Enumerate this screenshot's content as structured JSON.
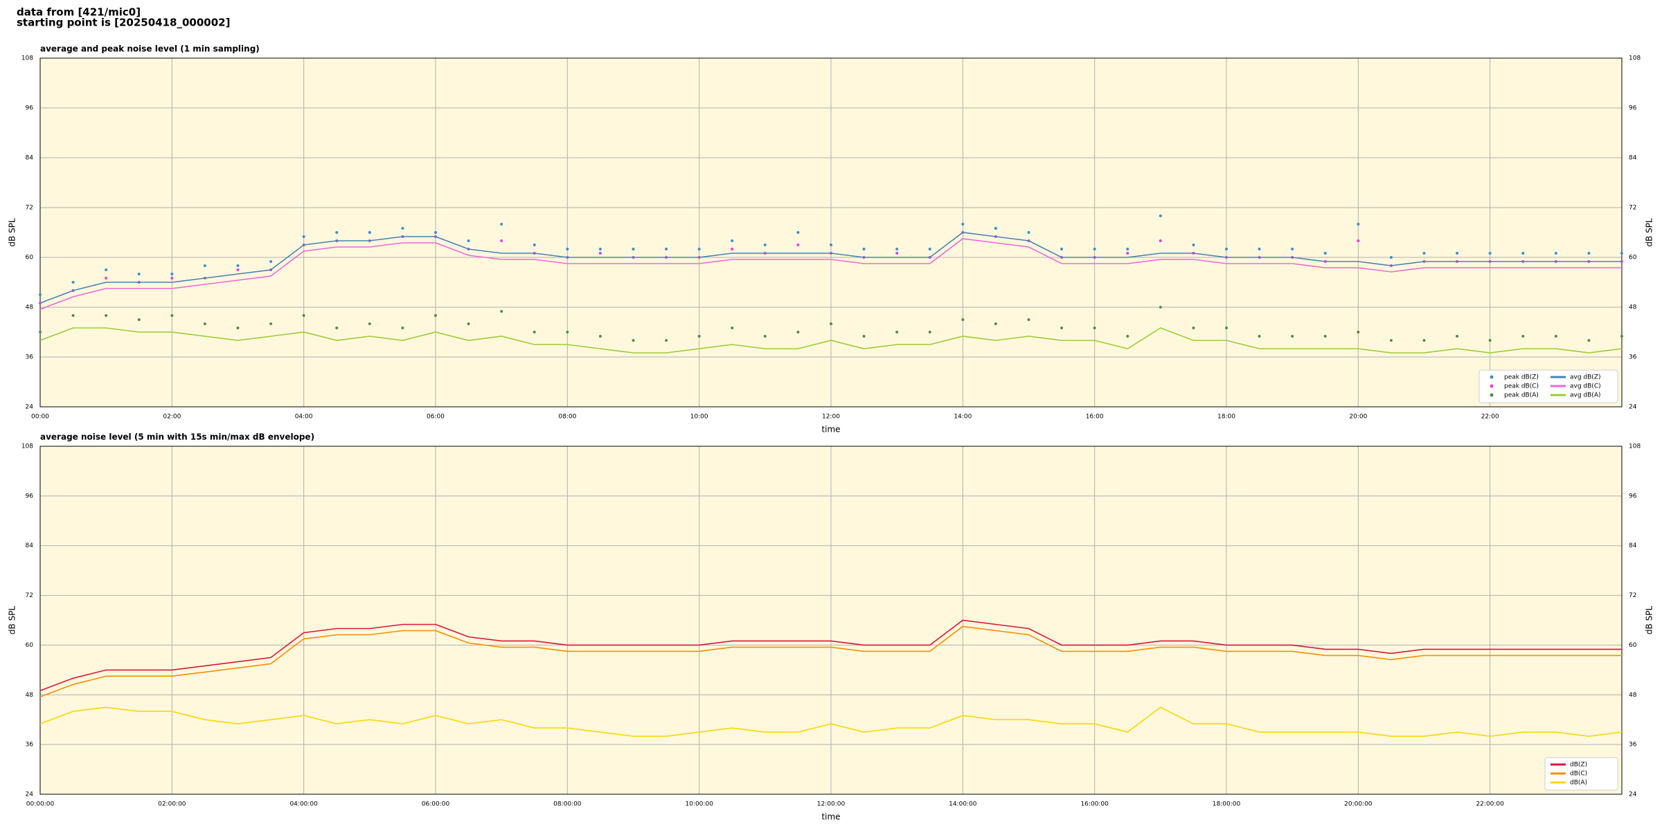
{
  "header": {
    "line1": "data from [421/mic0]",
    "line2": "starting point is [20250418_000002]"
  },
  "chart_data": [
    {
      "type": "line",
      "title": "average and peak noise level (1 min sampling)",
      "x_label": "time",
      "y_label": "dB SPL",
      "xlim": [
        0,
        24
      ],
      "ylim": [
        24,
        108
      ],
      "grid": true,
      "legend": "lower right",
      "xticks": [
        {
          "value": 0,
          "label": "00:00"
        },
        {
          "value": 2,
          "label": "02:00"
        },
        {
          "value": 4,
          "label": "04:00"
        },
        {
          "value": 6,
          "label": "06:00"
        },
        {
          "value": 8,
          "label": "08:00"
        },
        {
          "value": 10,
          "label": "10:00"
        },
        {
          "value": 12,
          "label": "12:00"
        },
        {
          "value": 14,
          "label": "14:00"
        },
        {
          "value": 16,
          "label": "16:00"
        },
        {
          "value": 18,
          "label": "18:00"
        },
        {
          "value": 20,
          "label": "20:00"
        },
        {
          "value": 22,
          "label": "22:00"
        }
      ],
      "yticks": [
        24,
        36,
        48,
        60,
        72,
        84,
        96,
        108
      ],
      "x": [
        0,
        0.5,
        1,
        1.5,
        2,
        2.5,
        3,
        3.5,
        4,
        4.5,
        5,
        5.5,
        6,
        6.5,
        7,
        7.5,
        8,
        8.5,
        9,
        9.5,
        10,
        10.5,
        11,
        11.5,
        12,
        12.5,
        13,
        13.5,
        14,
        14.5,
        15,
        15.5,
        16,
        16.5,
        17,
        17.5,
        18,
        18.5,
        19,
        19.5,
        20,
        20.5,
        21,
        21.5,
        22,
        22.5,
        23,
        23.5,
        24
      ],
      "series": [
        {
          "name": "peak dB(Z)",
          "color": "#3a8fd0",
          "style": "dots",
          "values": [
            51,
            54,
            57,
            56,
            56,
            58,
            58,
            59,
            65,
            66,
            66,
            67,
            66,
            64,
            68,
            63,
            62,
            62,
            62,
            62,
            62,
            64,
            63,
            66,
            63,
            62,
            62,
            62,
            68,
            67,
            66,
            62,
            62,
            62,
            70,
            63,
            62,
            62,
            62,
            61,
            68,
            60,
            61,
            61,
            61,
            61,
            61,
            61,
            61
          ]
        },
        {
          "name": "peak dB(C)",
          "color": "#e040e0",
          "style": "dots",
          "values": [
            49,
            52,
            55,
            54,
            55,
            55,
            57,
            57,
            63,
            64,
            64,
            65,
            65,
            62,
            64,
            61,
            60,
            61,
            60,
            60,
            60,
            62,
            61,
            63,
            61,
            60,
            61,
            60,
            66,
            65,
            64,
            60,
            60,
            61,
            64,
            61,
            60,
            60,
            60,
            59,
            64,
            58,
            59,
            59,
            59,
            59,
            59,
            59,
            59
          ]
        },
        {
          "name": "peak dB(A)",
          "color": "#4e8f45",
          "style": "dots",
          "values": [
            42,
            46,
            46,
            45,
            46,
            44,
            43,
            44,
            46,
            43,
            44,
            43,
            46,
            44,
            47,
            42,
            42,
            41,
            40,
            40,
            41,
            43,
            41,
            42,
            44,
            41,
            42,
            42,
            45,
            44,
            45,
            43,
            43,
            41,
            48,
            43,
            43,
            41,
            41,
            41,
            42,
            40,
            40,
            41,
            40,
            41,
            41,
            40,
            41
          ]
        },
        {
          "name": "avg dB(Z)",
          "color": "#4682b4",
          "style": "line",
          "values": [
            49,
            52,
            54,
            54,
            54,
            55,
            56,
            57,
            63,
            64,
            64,
            65,
            65,
            62,
            61,
            61,
            60,
            60,
            60,
            60,
            60,
            61,
            61,
            61,
            61,
            60,
            60,
            60,
            66,
            65,
            64,
            60,
            60,
            60,
            61,
            61,
            60,
            60,
            60,
            59,
            59,
            58,
            59,
            59,
            59,
            59,
            59,
            59,
            59
          ]
        },
        {
          "name": "avg dB(C)",
          "color": "#ee66dd",
          "style": "line",
          "values": [
            47.5,
            50.5,
            52.5,
            52.5,
            52.5,
            53.5,
            54.5,
            55.5,
            61.5,
            62.5,
            62.5,
            63.5,
            63.5,
            60.5,
            59.5,
            59.5,
            58.5,
            58.5,
            58.5,
            58.5,
            58.5,
            59.5,
            59.5,
            59.5,
            59.5,
            58.5,
            58.5,
            58.5,
            64.5,
            63.5,
            62.5,
            58.5,
            58.5,
            58.5,
            59.5,
            59.5,
            58.5,
            58.5,
            58.5,
            57.5,
            57.5,
            56.5,
            57.5,
            57.5,
            57.5,
            57.5,
            57.5,
            57.5,
            57.5
          ]
        },
        {
          "name": "avg dB(A)",
          "color": "#9acd32",
          "style": "line",
          "values": [
            40,
            43,
            43,
            42,
            42,
            41,
            40,
            41,
            42,
            40,
            41,
            40,
            42,
            40,
            41,
            39,
            39,
            38,
            37,
            37,
            38,
            39,
            38,
            38,
            40,
            38,
            39,
            39,
            41,
            40,
            41,
            40,
            40,
            38,
            43,
            40,
            40,
            38,
            38,
            38,
            38,
            37,
            37,
            38,
            37,
            38,
            38,
            37,
            38
          ]
        }
      ]
    },
    {
      "type": "line",
      "title": "average noise level (5 min with 15s min/max dB envelope)",
      "x_label": "time",
      "y_label": "dB SPL",
      "xlim": [
        0,
        24
      ],
      "ylim": [
        24,
        108
      ],
      "grid": true,
      "legend": "lower right",
      "xticks": [
        {
          "value": 0,
          "label": "00:00:00"
        },
        {
          "value": 2,
          "label": "02:00:00"
        },
        {
          "value": 4,
          "label": "04:00:00"
        },
        {
          "value": 6,
          "label": "06:00:00"
        },
        {
          "value": 8,
          "label": "08:00:00"
        },
        {
          "value": 10,
          "label": "10:00:00"
        },
        {
          "value": 12,
          "label": "12:00:00"
        },
        {
          "value": 14,
          "label": "14:00:00"
        },
        {
          "value": 16,
          "label": "16:00:00"
        },
        {
          "value": 18,
          "label": "18:00:00"
        },
        {
          "value": 20,
          "label": "20:00:00"
        },
        {
          "value": 22,
          "label": "22:00:00"
        }
      ],
      "yticks": [
        24,
        36,
        48,
        60,
        72,
        84,
        96,
        108
      ],
      "x": [
        0,
        0.5,
        1,
        1.5,
        2,
        2.5,
        3,
        3.5,
        4,
        4.5,
        5,
        5.5,
        6,
        6.5,
        7,
        7.5,
        8,
        8.5,
        9,
        9.5,
        10,
        10.5,
        11,
        11.5,
        12,
        12.5,
        13,
        13.5,
        14,
        14.5,
        15,
        15.5,
        16,
        16.5,
        17,
        17.5,
        18,
        18.5,
        19,
        19.5,
        20,
        20.5,
        21,
        21.5,
        22,
        22.5,
        23,
        23.5,
        24
      ],
      "series": [
        {
          "name": "dB(Z)",
          "color": "#dc143c",
          "style": "line",
          "values": [
            49,
            52,
            54,
            54,
            54,
            55,
            56,
            57,
            63,
            64,
            64,
            65,
            65,
            62,
            61,
            61,
            60,
            60,
            60,
            60,
            60,
            61,
            61,
            61,
            61,
            60,
            60,
            60,
            66,
            65,
            64,
            60,
            60,
            60,
            61,
            61,
            60,
            60,
            60,
            59,
            59,
            58,
            59,
            59,
            59,
            59,
            59,
            59,
            59
          ]
        },
        {
          "name": "dB(C)",
          "color": "#ff8c00",
          "style": "line",
          "values": [
            47.5,
            50.5,
            52.5,
            52.5,
            52.5,
            53.5,
            54.5,
            55.5,
            61.5,
            62.5,
            62.5,
            63.5,
            63.5,
            60.5,
            59.5,
            59.5,
            58.5,
            58.5,
            58.5,
            58.5,
            58.5,
            59.5,
            59.5,
            59.5,
            59.5,
            58.5,
            58.5,
            58.5,
            64.5,
            63.5,
            62.5,
            58.5,
            58.5,
            58.5,
            59.5,
            59.5,
            58.5,
            58.5,
            58.5,
            57.5,
            57.5,
            56.5,
            57.5,
            57.5,
            57.5,
            57.5,
            57.5,
            57.5,
            57.5
          ]
        },
        {
          "name": "dB(A)",
          "color": "#ffd700",
          "style": "line",
          "values": [
            41,
            44,
            45,
            44,
            44,
            42,
            41,
            42,
            43,
            41,
            42,
            41,
            43,
            41,
            42,
            40,
            40,
            39,
            38,
            38,
            39,
            40,
            39,
            39,
            41,
            39,
            40,
            40,
            43,
            42,
            42,
            41,
            41,
            39,
            45,
            41,
            41,
            39,
            39,
            39,
            39,
            38,
            38,
            39,
            38,
            39,
            39,
            38,
            39
          ]
        }
      ]
    }
  ]
}
